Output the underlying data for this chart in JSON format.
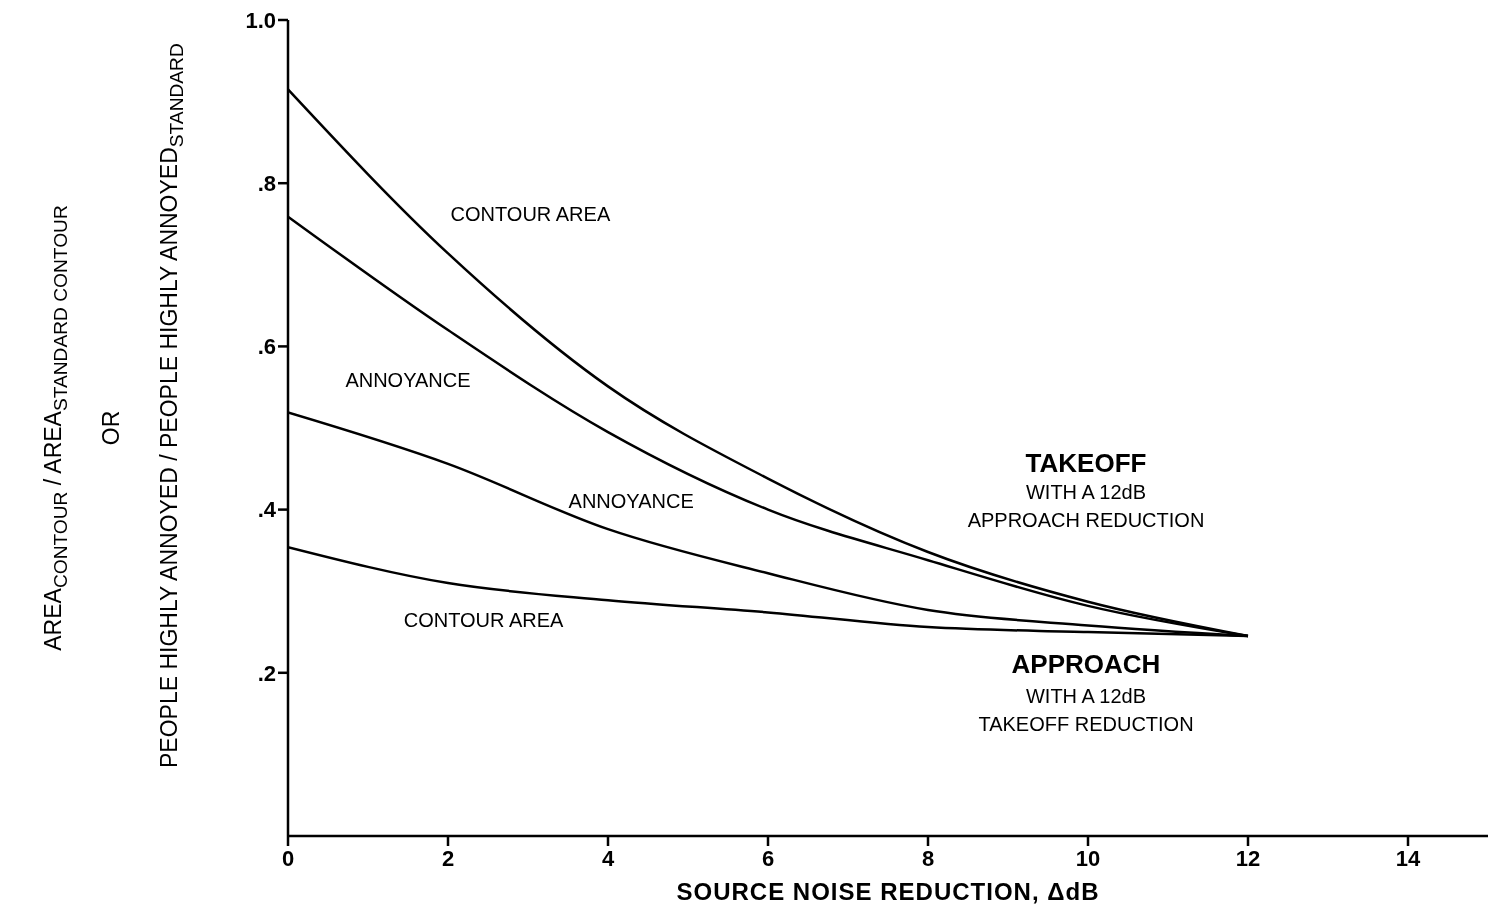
{
  "chart_data": {
    "type": "line",
    "xlabel": "SOURCE NOISE REDUCTION, ΔdB",
    "ylabel": "AREA$_{CONTOUR}$ / AREA$_{STANDARD CONTOUR}$\nOR\nPEOPLE HIGHLY ANNOYED / PEOPLE HIGHLY ANNOYED$_{STANDARD}$",
    "x": [
      0,
      2,
      4,
      6,
      8,
      10,
      12
    ],
    "series": [
      {
        "color": "#000000",
        "values": [
          0.915,
          0.714,
          0.551,
          0.438,
          0.348,
          0.287,
          0.245
        ]
      },
      {
        "color": "#000000",
        "values": [
          0.759,
          0.62,
          0.495,
          0.4,
          0.338,
          0.282,
          0.245
        ]
      },
      {
        "color": "#000000",
        "values": [
          0.519,
          0.456,
          0.376,
          0.322,
          0.277,
          0.258,
          0.245
        ]
      },
      {
        "color": "#000000",
        "values": [
          0.354,
          0.31,
          0.289,
          0.274,
          0.256,
          0.25,
          0.245
        ]
      }
    ],
    "xlim": [
      0,
      15
    ],
    "xticks": [
      0,
      2,
      4,
      6,
      8,
      10,
      12,
      14
    ],
    "ylim": [
      0,
      1.0
    ],
    "yticks": [
      {
        "value": 0.2,
        "label": ".2"
      },
      {
        "value": 0.4,
        "label": ".4"
      },
      {
        "value": 0.6,
        "label": ".6"
      },
      {
        "value": 0.8,
        "label": ".8"
      },
      {
        "value": 1.0,
        "label": "1.0"
      }
    ],
    "line_style": "solid",
    "grid": false,
    "legend": false,
    "annotations": [
      "CONTOUR AREA",
      "ANNOYANCE",
      "ANNOYANCE",
      "CONTOUR AREA",
      "TAKEOFF",
      "WITH A 12dB",
      "APPROACH REDUCTION",
      "APPROACH",
      "WITH A 12dB",
      "TAKEOFF REDUCTION"
    ]
  }
}
